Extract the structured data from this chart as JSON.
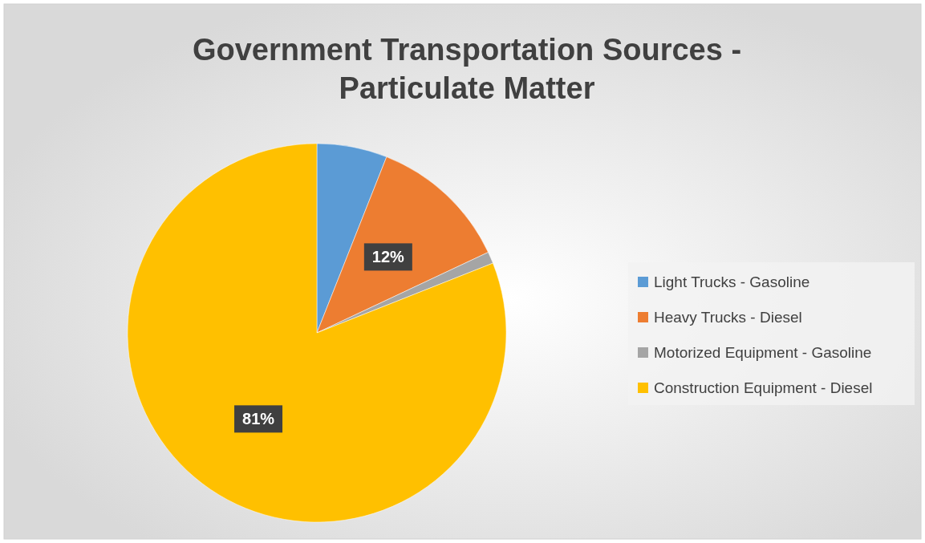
{
  "chart_data": {
    "type": "pie",
    "title": "Government Transportation Sources - Particulate Matter",
    "categories": [
      "Light Trucks - Gasoline",
      "Heavy Trucks - Diesel",
      "Motorized Equipment - Gasoline",
      "Construction Equipment - Diesel"
    ],
    "values": [
      6,
      12,
      1,
      81
    ],
    "colors": [
      "#5b9bd5",
      "#ed7d31",
      "#a5a5a5",
      "#ffc000"
    ],
    "value_labels": [
      null,
      "12%",
      null,
      "81%"
    ],
    "legend": "right"
  }
}
